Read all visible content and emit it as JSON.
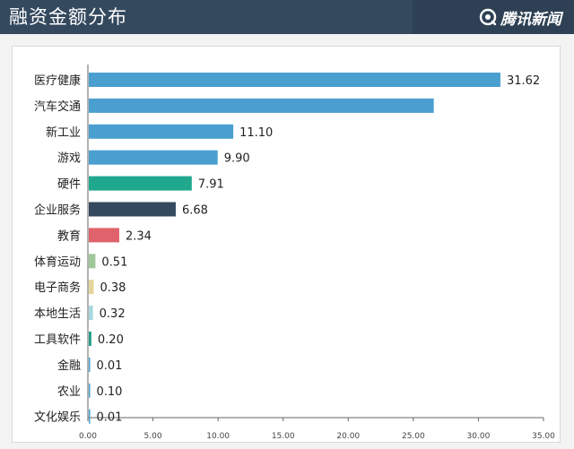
{
  "header": {
    "title": "融资金额分布",
    "brand": "腾讯新闻",
    "brand_icon": "tencent-news-logo-icon",
    "background_color": "#34495e"
  },
  "chart_data": {
    "type": "bar",
    "orientation": "horizontal",
    "title": "融资金额分布",
    "xlabel": "",
    "ylabel": "",
    "xlim": [
      0,
      35
    ],
    "categories": [
      "医疗健康",
      "汽车交通",
      "新工业",
      "游戏",
      "硬件",
      "企业服务",
      "教育",
      "体育运动",
      "电子商务",
      "本地生活",
      "工具软件",
      "金融",
      "农业",
      "文化娱乐"
    ],
    "values": [
      31.62,
      26.5,
      11.1,
      9.9,
      7.91,
      6.68,
      2.34,
      0.51,
      0.38,
      0.32,
      0.2,
      0.01,
      0.1,
      0.01
    ],
    "value_labels": [
      "31.62",
      "",
      "11.10",
      "9.90",
      "7.91",
      "6.68",
      "2.34",
      "0.51",
      "0.38",
      "0.32",
      "0.20",
      "0.01",
      "0.10",
      "0.01"
    ],
    "colors": [
      "#4a9fd0",
      "#4a9fd0",
      "#4a9fd0",
      "#4a9fd0",
      "#1fa88e",
      "#34495e",
      "#e0626a",
      "#9fc89a",
      "#e5d59a",
      "#a8d8e0",
      "#2a9e8c",
      "#4a9fd0",
      "#4a9fd0",
      "#4a9fd0"
    ],
    "x_ticks": [
      "0.00",
      "5.00",
      "10.00",
      "15.00",
      "20.00",
      "25.00",
      "30.00",
      "35.00"
    ],
    "grid": false,
    "legend": "none"
  }
}
